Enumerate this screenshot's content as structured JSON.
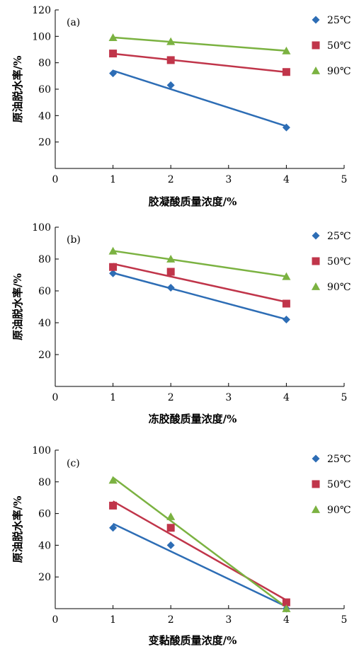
{
  "chart_data": [
    {
      "type": "scatter",
      "panel_label": "(a)",
      "xlabel": "胶凝酸质量浓度/%",
      "ylabel": "原油脱水率/%",
      "xlim": [
        0,
        5
      ],
      "ylim": [
        0,
        120
      ],
      "xticks": [
        0,
        1,
        2,
        3,
        4,
        5
      ],
      "yticks": [
        20,
        40,
        60,
        80,
        100,
        120
      ],
      "legend_position": "right",
      "series": [
        {
          "name": "25℃",
          "color": "#2d6db5",
          "marker": "diamond",
          "x": [
            1,
            2,
            4
          ],
          "y": [
            72,
            63,
            31
          ]
        },
        {
          "name": "50℃",
          "color": "#c0354a",
          "marker": "square",
          "x": [
            1,
            2,
            4
          ],
          "y": [
            87,
            82,
            73
          ]
        },
        {
          "name": "90℃",
          "color": "#7bb241",
          "marker": "triangle",
          "x": [
            1,
            2,
            4
          ],
          "y": [
            99,
            96,
            89
          ]
        }
      ]
    },
    {
      "type": "scatter",
      "panel_label": "(b)",
      "xlabel": "冻胶酸质量浓度/%",
      "ylabel": "原油脱水率/%",
      "xlim": [
        0,
        5
      ],
      "ylim": [
        0,
        100
      ],
      "xticks": [
        0,
        1,
        2,
        3,
        4,
        5
      ],
      "yticks": [
        20,
        40,
        60,
        80,
        100
      ],
      "legend_position": "right",
      "series": [
        {
          "name": "25℃",
          "color": "#2d6db5",
          "marker": "diamond",
          "x": [
            1,
            2,
            4
          ],
          "y": [
            71,
            62,
            42
          ]
        },
        {
          "name": "50℃",
          "color": "#c0354a",
          "marker": "square",
          "x": [
            1,
            2,
            4
          ],
          "y": [
            75,
            72,
            52
          ]
        },
        {
          "name": "90℃",
          "color": "#7bb241",
          "marker": "triangle",
          "x": [
            1,
            2,
            4
          ],
          "y": [
            85,
            80,
            69
          ]
        }
      ]
    },
    {
      "type": "scatter",
      "panel_label": "(c)",
      "xlabel": "变黏酸质量浓度/%",
      "ylabel": "原油脱水率/%",
      "xlim": [
        0,
        5
      ],
      "ylim": [
        0,
        100
      ],
      "xticks": [
        0,
        1,
        2,
        3,
        4,
        5
      ],
      "yticks": [
        20,
        40,
        60,
        80,
        100
      ],
      "legend_position": "right",
      "series": [
        {
          "name": "25℃",
          "color": "#2d6db5",
          "marker": "diamond",
          "x": [
            1,
            2,
            4
          ],
          "y": [
            51,
            40,
            0
          ]
        },
        {
          "name": "50℃",
          "color": "#c0354a",
          "marker": "square",
          "x": [
            1,
            2,
            4
          ],
          "y": [
            65,
            51,
            4
          ]
        },
        {
          "name": "90℃",
          "color": "#7bb241",
          "marker": "triangle",
          "x": [
            1,
            2,
            4
          ],
          "y": [
            81,
            58,
            0
          ]
        }
      ]
    }
  ]
}
